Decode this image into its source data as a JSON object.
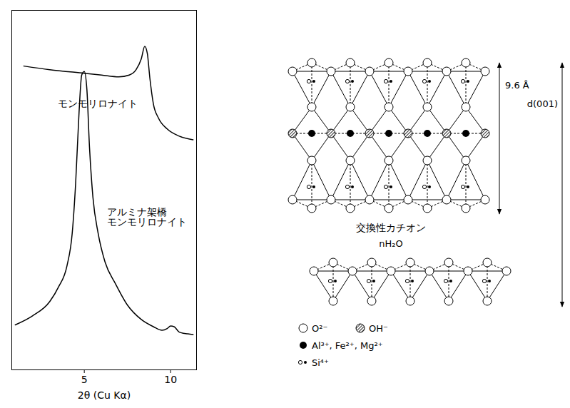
{
  "chart_data": {
    "type": "line",
    "xlabel": "2θ (Cu Kα)",
    "xlim": [
      0.8,
      11.5
    ],
    "xticks": [
      5,
      10
    ],
    "ylim": [
      0,
      100
    ],
    "tick_labels": "x",
    "grid": false,
    "series": [
      {
        "name": "モンモリロナイト",
        "color": "#000000",
        "x": [
          1.5,
          3,
          5,
          6,
          7,
          7.6,
          8.0,
          8.3,
          8.5,
          8.65,
          8.8,
          9.0,
          9.3,
          9.8,
          10.5,
          11.3
        ],
        "values": [
          84.5,
          83.5,
          82.5,
          82,
          81.5,
          82,
          83.5,
          86.5,
          90,
          88,
          81,
          74,
          70,
          67,
          65,
          64
        ]
      },
      {
        "name": "アルミナ架橋\nモンモリロナイト",
        "color": "#000000",
        "x": [
          1.0,
          2.0,
          3.0,
          3.5,
          4.0,
          4.3,
          4.5,
          4.7,
          4.85,
          5.0,
          5.15,
          5.3,
          5.5,
          5.8,
          6.2,
          6.8,
          7.5,
          8.3,
          9.0,
          9.5,
          9.8,
          10.0,
          10.2,
          10.5,
          11.0,
          11.3
        ],
        "values": [
          12.5,
          15,
          19,
          23,
          29,
          38,
          52,
          72,
          82,
          83,
          78,
          62,
          48,
          38,
          30,
          24,
          18,
          14,
          12,
          11,
          11.5,
          12.2,
          12,
          10.5,
          10,
          9.8
        ]
      }
    ]
  },
  "diagram": {
    "layer_thickness": "9.6 Å",
    "basal_spacing": "d(001)",
    "interlayer": [
      "交換性カチオン",
      "nH₂O"
    ],
    "legend": [
      {
        "marker": "open_circle",
        "label": "O²⁻"
      },
      {
        "marker": "hatched_circle",
        "label": "OH⁻"
      },
      {
        "marker": "filled_circle",
        "label": "Al³⁺, Fe²⁺, Mg²⁺"
      },
      {
        "marker": "small_circles",
        "label": "Si⁴⁺"
      }
    ]
  }
}
